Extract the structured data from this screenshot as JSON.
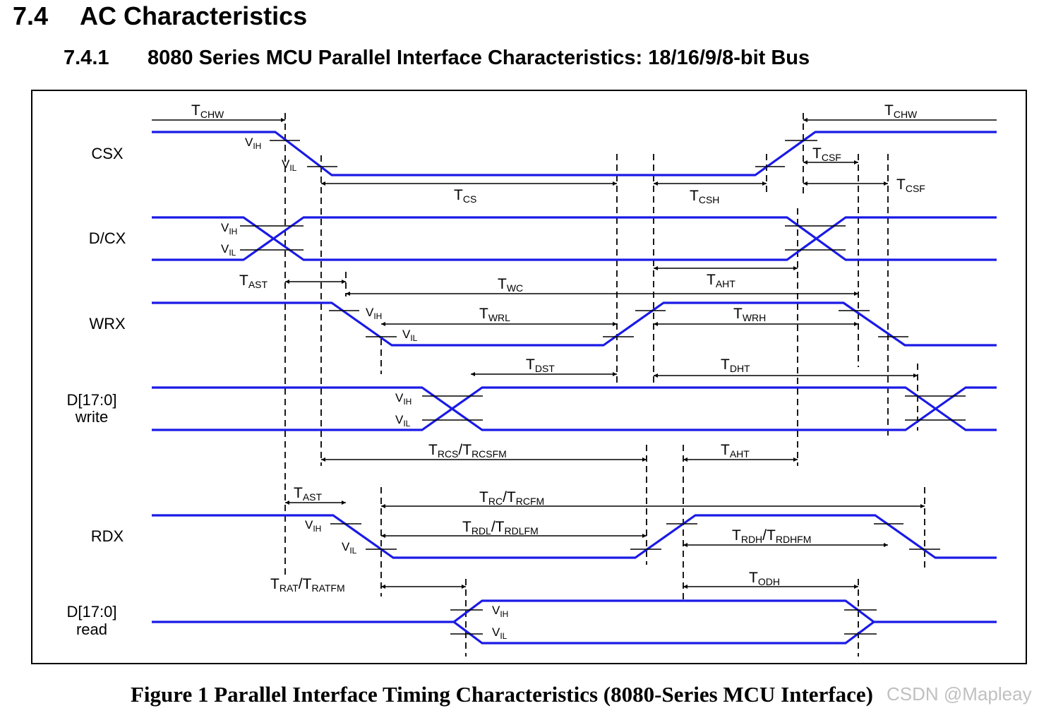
{
  "header": {
    "section_number": "7.4",
    "section_title": "AC Characteristics",
    "subsection_number": "7.4.1",
    "subsection_title": "8080 Series MCU Parallel Interface Characteristics: 18/16/9/8-bit Bus"
  },
  "signals": {
    "csx": "CSX",
    "dcx": "D/CX",
    "wrx": "WRX",
    "dwrite": [
      "D[17:0]",
      "write"
    ],
    "rdx": "RDX",
    "dread": [
      "D[17:0]",
      "read"
    ]
  },
  "timing": {
    "tchw": {
      "base": "T",
      "sub": "CHW"
    },
    "tcs": {
      "base": "T",
      "sub": "CS"
    },
    "tcsh": {
      "base": "T",
      "sub": "CSH"
    },
    "tcsf": {
      "base": "T",
      "sub": "CSF"
    },
    "tast": {
      "base": "T",
      "sub": "AST"
    },
    "twc": {
      "base": "T",
      "sub": "WC"
    },
    "taht": {
      "base": "T",
      "sub": "AHT"
    },
    "twrl": {
      "base": "T",
      "sub": "WRL"
    },
    "twrh": {
      "base": "T",
      "sub": "WRH"
    },
    "tdst": {
      "base": "T",
      "sub": "DST"
    },
    "tdht": {
      "base": "T",
      "sub": "DHT"
    },
    "trcs": {
      "base": "T",
      "sub": "RCS",
      "sep": "/T",
      "sub2": "RCSFM"
    },
    "trc": {
      "base": "T",
      "sub": "RC",
      "sep": "/T",
      "sub2": "RCFM"
    },
    "trdl": {
      "base": "T",
      "sub": "RDL",
      "sep": "/T",
      "sub2": "RDLFM"
    },
    "trdh": {
      "base": "T",
      "sub": "RDH",
      "sep": "/T",
      "sub2": "RDHFM"
    },
    "trat": {
      "base": "T",
      "sub": "RAT",
      "sep": "/T",
      "sub2": "RATFM"
    },
    "todh": {
      "base": "T",
      "sub": "ODH"
    }
  },
  "levels": {
    "vih": {
      "base": "V",
      "sub": "IH"
    },
    "vil": {
      "base": "V",
      "sub": "IL"
    }
  },
  "caption": "Figure 1 Parallel Interface Timing Characteristics (8080-Series MCU Interface)",
  "watermark": "CSDN @Mapleay",
  "colors": {
    "waveform": "#1a1ae6",
    "line": "#000000",
    "background": "#ffffff"
  }
}
